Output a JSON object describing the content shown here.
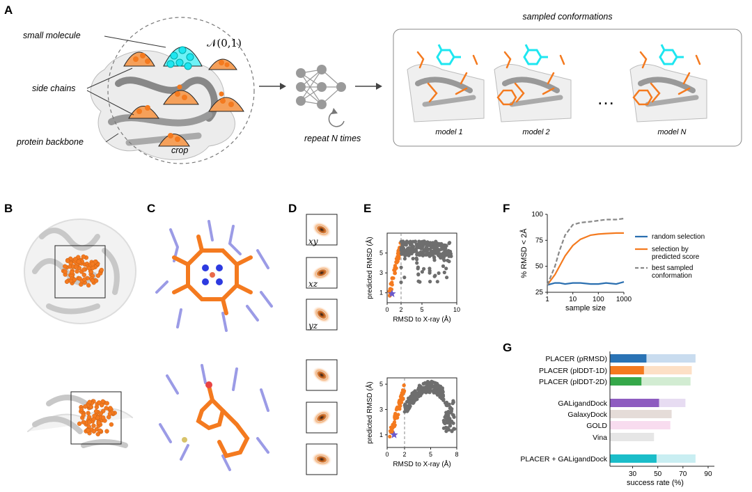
{
  "panels": {
    "a": "A",
    "b": "B",
    "c": "C",
    "d": "D",
    "e": "E",
    "f": "F",
    "g": "G"
  },
  "panel_a": {
    "small_molecule": "small molecule",
    "side_chains": "side chains",
    "protein_backbone": "protein backbone",
    "crop": "crop",
    "normal_dist": "𝒩(0,1)",
    "repeat": "repeat N times",
    "sampled_title": "sampled conformations",
    "models": [
      "model 1",
      "model 2",
      "model N"
    ],
    "ellipsis": "…"
  },
  "panel_d": {
    "labels": [
      "xy",
      "xz",
      "yz"
    ]
  },
  "colors": {
    "orange": "#f47a1f",
    "cyan": "#1ee6f0",
    "gray": "#777777",
    "blue": "#2a6fb0",
    "purple": "#8a5bbd",
    "green": "#2ca02c"
  },
  "chart_data": [
    {
      "id": "E-top",
      "type": "scatter",
      "xlabel": "RMSD to X-ray (Å)",
      "ylabel": "predicted RMSD (Å)",
      "xlim": [
        0,
        10
      ],
      "ylim": [
        0,
        7
      ],
      "xticks": [
        0,
        2,
        5,
        10
      ],
      "yticks": [
        1,
        3,
        5
      ],
      "threshold_x": 2,
      "star": {
        "x": 0.7,
        "y": 0.9
      }
    },
    {
      "id": "E-bottom",
      "type": "scatter",
      "xlabel": "RMSD to X-ray (Å)",
      "ylabel": "predicted RMSD (Å)",
      "xlim": [
        0,
        8
      ],
      "ylim": [
        0,
        5.5
      ],
      "xticks": [
        0,
        2,
        5,
        8
      ],
      "yticks": [
        1,
        3,
        5
      ],
      "threshold_x": 2,
      "star": {
        "x": 0.8,
        "y": 1.0
      }
    },
    {
      "id": "F",
      "type": "line",
      "xlabel": "sample size",
      "ylabel": "% RMSD < 2Å",
      "xscale": "log",
      "xlim": [
        1,
        1000
      ],
      "ylim": [
        25,
        100
      ],
      "xticks": [
        1,
        10,
        100,
        1000
      ],
      "xticklabels": [
        "1",
        "10",
        "100",
        "1000"
      ],
      "yticks": [
        25,
        50,
        75,
        100
      ],
      "legend": "right",
      "series": [
        {
          "name": "random selection",
          "color": "#2a6fb0",
          "dash": false,
          "x": [
            1,
            2,
            3,
            5,
            10,
            20,
            50,
            100,
            200,
            500,
            1000
          ],
          "y": [
            32,
            34,
            34,
            33,
            34,
            34,
            33,
            33,
            34,
            33,
            35
          ]
        },
        {
          "name": "selection by predicted score",
          "color": "#f47a1f",
          "dash": false,
          "x": [
            1,
            2,
            3,
            5,
            10,
            20,
            50,
            100,
            200,
            500,
            1000
          ],
          "y": [
            32,
            42,
            50,
            60,
            70,
            76,
            80,
            81,
            81.5,
            82,
            82
          ]
        },
        {
          "name": "best sampled conformation",
          "color": "#888888",
          "dash": true,
          "x": [
            1,
            2,
            3,
            5,
            10,
            20,
            50,
            100,
            200,
            500,
            1000
          ],
          "y": [
            32,
            50,
            65,
            80,
            90,
            92,
            93,
            94,
            95,
            95,
            96
          ]
        }
      ]
    },
    {
      "id": "G",
      "type": "bar",
      "xlabel": "success rate (%)",
      "xlim": [
        12,
        95
      ],
      "xticks": [
        30,
        50,
        70,
        90
      ],
      "categories": [
        "PLACER (pRMSD)",
        "PLACER (plDDT-1D)",
        "PLACER (plDDT-2D)",
        "GALigandDock",
        "GalaxyDock",
        "GOLD",
        "Vina",
        "PLACER + GALigandDock"
      ],
      "series": [
        {
          "name": "top",
          "values": [
            41,
            39,
            37,
            51,
            null,
            null,
            null,
            49
          ],
          "colors": [
            "#2a73b5",
            "#f47a1f",
            "#35a84a",
            "#8e5cc0",
            null,
            null,
            null,
            "#1bbdc9"
          ]
        },
        {
          "name": "best",
          "values": [
            80,
            77,
            76,
            72,
            61,
            60,
            47,
            80
          ],
          "colors": [
            "#c9dcef",
            "#fde0c6",
            "#d2ecd2",
            "#e7dcf2",
            "#e5dcd8",
            "#f8dcef",
            "#e6e6e6",
            "#c9eef2"
          ]
        }
      ]
    }
  ]
}
